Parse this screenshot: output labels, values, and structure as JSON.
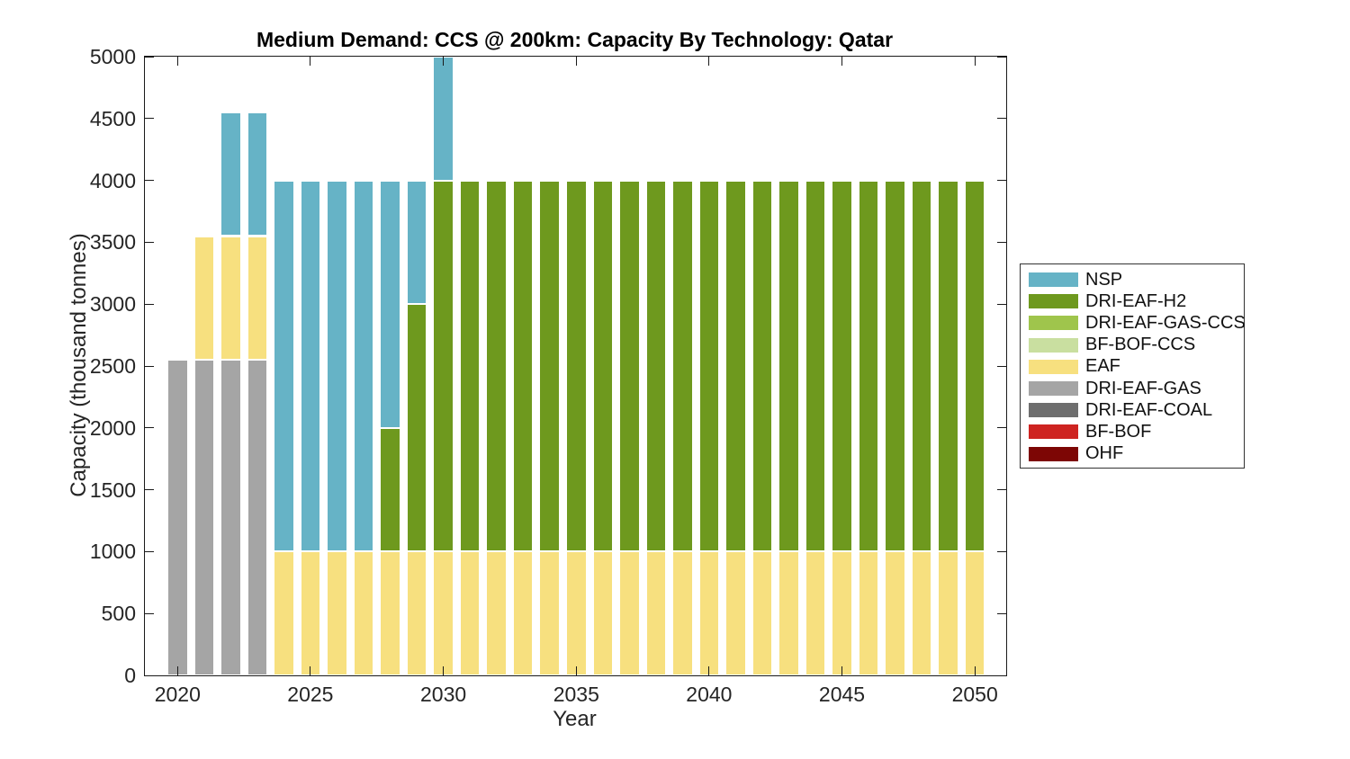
{
  "chart_data": {
    "type": "bar",
    "stacked": true,
    "title": "Medium Demand: CCS @ 200km: Capacity By Technology: Qatar",
    "xlabel": "Year",
    "ylabel": "Capacity (thousand tonnes)",
    "ylim": [
      0,
      5000
    ],
    "yticks": [
      0,
      500,
      1000,
      1500,
      2000,
      2500,
      3000,
      3500,
      4000,
      4500,
      5000
    ],
    "xticks": [
      2020,
      2025,
      2030,
      2035,
      2040,
      2045,
      2050
    ],
    "grid": false,
    "legend_position": "outside-right",
    "note": "NSP segment for 2030 is clipped at the y-axis top (5000); bar stack order bottom-to-top is reverse of legend order.",
    "categories": [
      2020,
      2021,
      2022,
      2023,
      2024,
      2025,
      2026,
      2027,
      2028,
      2029,
      2030,
      2031,
      2032,
      2033,
      2034,
      2035,
      2036,
      2037,
      2038,
      2039,
      2040,
      2041,
      2042,
      2043,
      2044,
      2045,
      2046,
      2047,
      2048,
      2049,
      2050
    ],
    "series": [
      {
        "name": "OHF",
        "color": "#7D0605",
        "values": [
          0,
          0,
          0,
          0,
          0,
          0,
          0,
          0,
          0,
          0,
          0,
          0,
          0,
          0,
          0,
          0,
          0,
          0,
          0,
          0,
          0,
          0,
          0,
          0,
          0,
          0,
          0,
          0,
          0,
          0,
          0
        ]
      },
      {
        "name": "BF-BOF",
        "color": "#CE2421",
        "values": [
          0,
          0,
          0,
          0,
          0,
          0,
          0,
          0,
          0,
          0,
          0,
          0,
          0,
          0,
          0,
          0,
          0,
          0,
          0,
          0,
          0,
          0,
          0,
          0,
          0,
          0,
          0,
          0,
          0,
          0,
          0
        ]
      },
      {
        "name": "DRI-EAF-COAL",
        "color": "#6E6E6E",
        "values": [
          0,
          0,
          0,
          0,
          0,
          0,
          0,
          0,
          0,
          0,
          0,
          0,
          0,
          0,
          0,
          0,
          0,
          0,
          0,
          0,
          0,
          0,
          0,
          0,
          0,
          0,
          0,
          0,
          0,
          0,
          0
        ]
      },
      {
        "name": "DRI-EAF-GAS",
        "color": "#A5A5A5",
        "values": [
          2550,
          2550,
          2550,
          2550,
          0,
          0,
          0,
          0,
          0,
          0,
          0,
          0,
          0,
          0,
          0,
          0,
          0,
          0,
          0,
          0,
          0,
          0,
          0,
          0,
          0,
          0,
          0,
          0,
          0,
          0,
          0
        ]
      },
      {
        "name": "EAF",
        "color": "#F7E07F",
        "values": [
          0,
          1000,
          1000,
          1000,
          1000,
          1000,
          1000,
          1000,
          1000,
          1000,
          1000,
          1000,
          1000,
          1000,
          1000,
          1000,
          1000,
          1000,
          1000,
          1000,
          1000,
          1000,
          1000,
          1000,
          1000,
          1000,
          1000,
          1000,
          1000,
          1000,
          1000
        ]
      },
      {
        "name": "BF-BOF-CCS",
        "color": "#C9DFA0",
        "values": [
          0,
          0,
          0,
          0,
          0,
          0,
          0,
          0,
          0,
          0,
          0,
          0,
          0,
          0,
          0,
          0,
          0,
          0,
          0,
          0,
          0,
          0,
          0,
          0,
          0,
          0,
          0,
          0,
          0,
          0,
          0
        ]
      },
      {
        "name": "DRI-EAF-GAS-CCS",
        "color": "#9FC54C",
        "values": [
          0,
          0,
          0,
          0,
          0,
          0,
          0,
          0,
          0,
          0,
          0,
          0,
          0,
          0,
          0,
          0,
          0,
          0,
          0,
          0,
          0,
          0,
          0,
          0,
          0,
          0,
          0,
          0,
          0,
          0,
          0
        ]
      },
      {
        "name": "DRI-EAF-H2",
        "color": "#6E991E",
        "values": [
          0,
          0,
          0,
          0,
          0,
          0,
          0,
          0,
          1000,
          2000,
          3000,
          3000,
          3000,
          3000,
          3000,
          3000,
          3000,
          3000,
          3000,
          3000,
          3000,
          3000,
          3000,
          3000,
          3000,
          3000,
          3000,
          3000,
          3000,
          3000,
          3000
        ]
      },
      {
        "name": "NSP",
        "color": "#66B3C6",
        "values": [
          0,
          0,
          1000,
          1000,
          3000,
          3000,
          3000,
          3000,
          2000,
          1000,
          1000,
          0,
          0,
          0,
          0,
          0,
          0,
          0,
          0,
          0,
          0,
          0,
          0,
          0,
          0,
          0,
          0,
          0,
          0,
          0,
          0
        ]
      }
    ],
    "legend": {
      "entries": [
        {
          "label": "NSP",
          "color": "#66B3C6"
        },
        {
          "label": "DRI-EAF-H2",
          "color": "#6E991E"
        },
        {
          "label": "DRI-EAF-GAS-CCS",
          "color": "#9FC54C"
        },
        {
          "label": "BF-BOF-CCS",
          "color": "#C9DFA0"
        },
        {
          "label": "EAF",
          "color": "#F7E07F"
        },
        {
          "label": "DRI-EAF-GAS",
          "color": "#A5A5A5"
        },
        {
          "label": "DRI-EAF-COAL",
          "color": "#6E6E6E"
        },
        {
          "label": "BF-BOF",
          "color": "#CE2421"
        },
        {
          "label": "OHF",
          "color": "#7D0605"
        }
      ]
    }
  }
}
